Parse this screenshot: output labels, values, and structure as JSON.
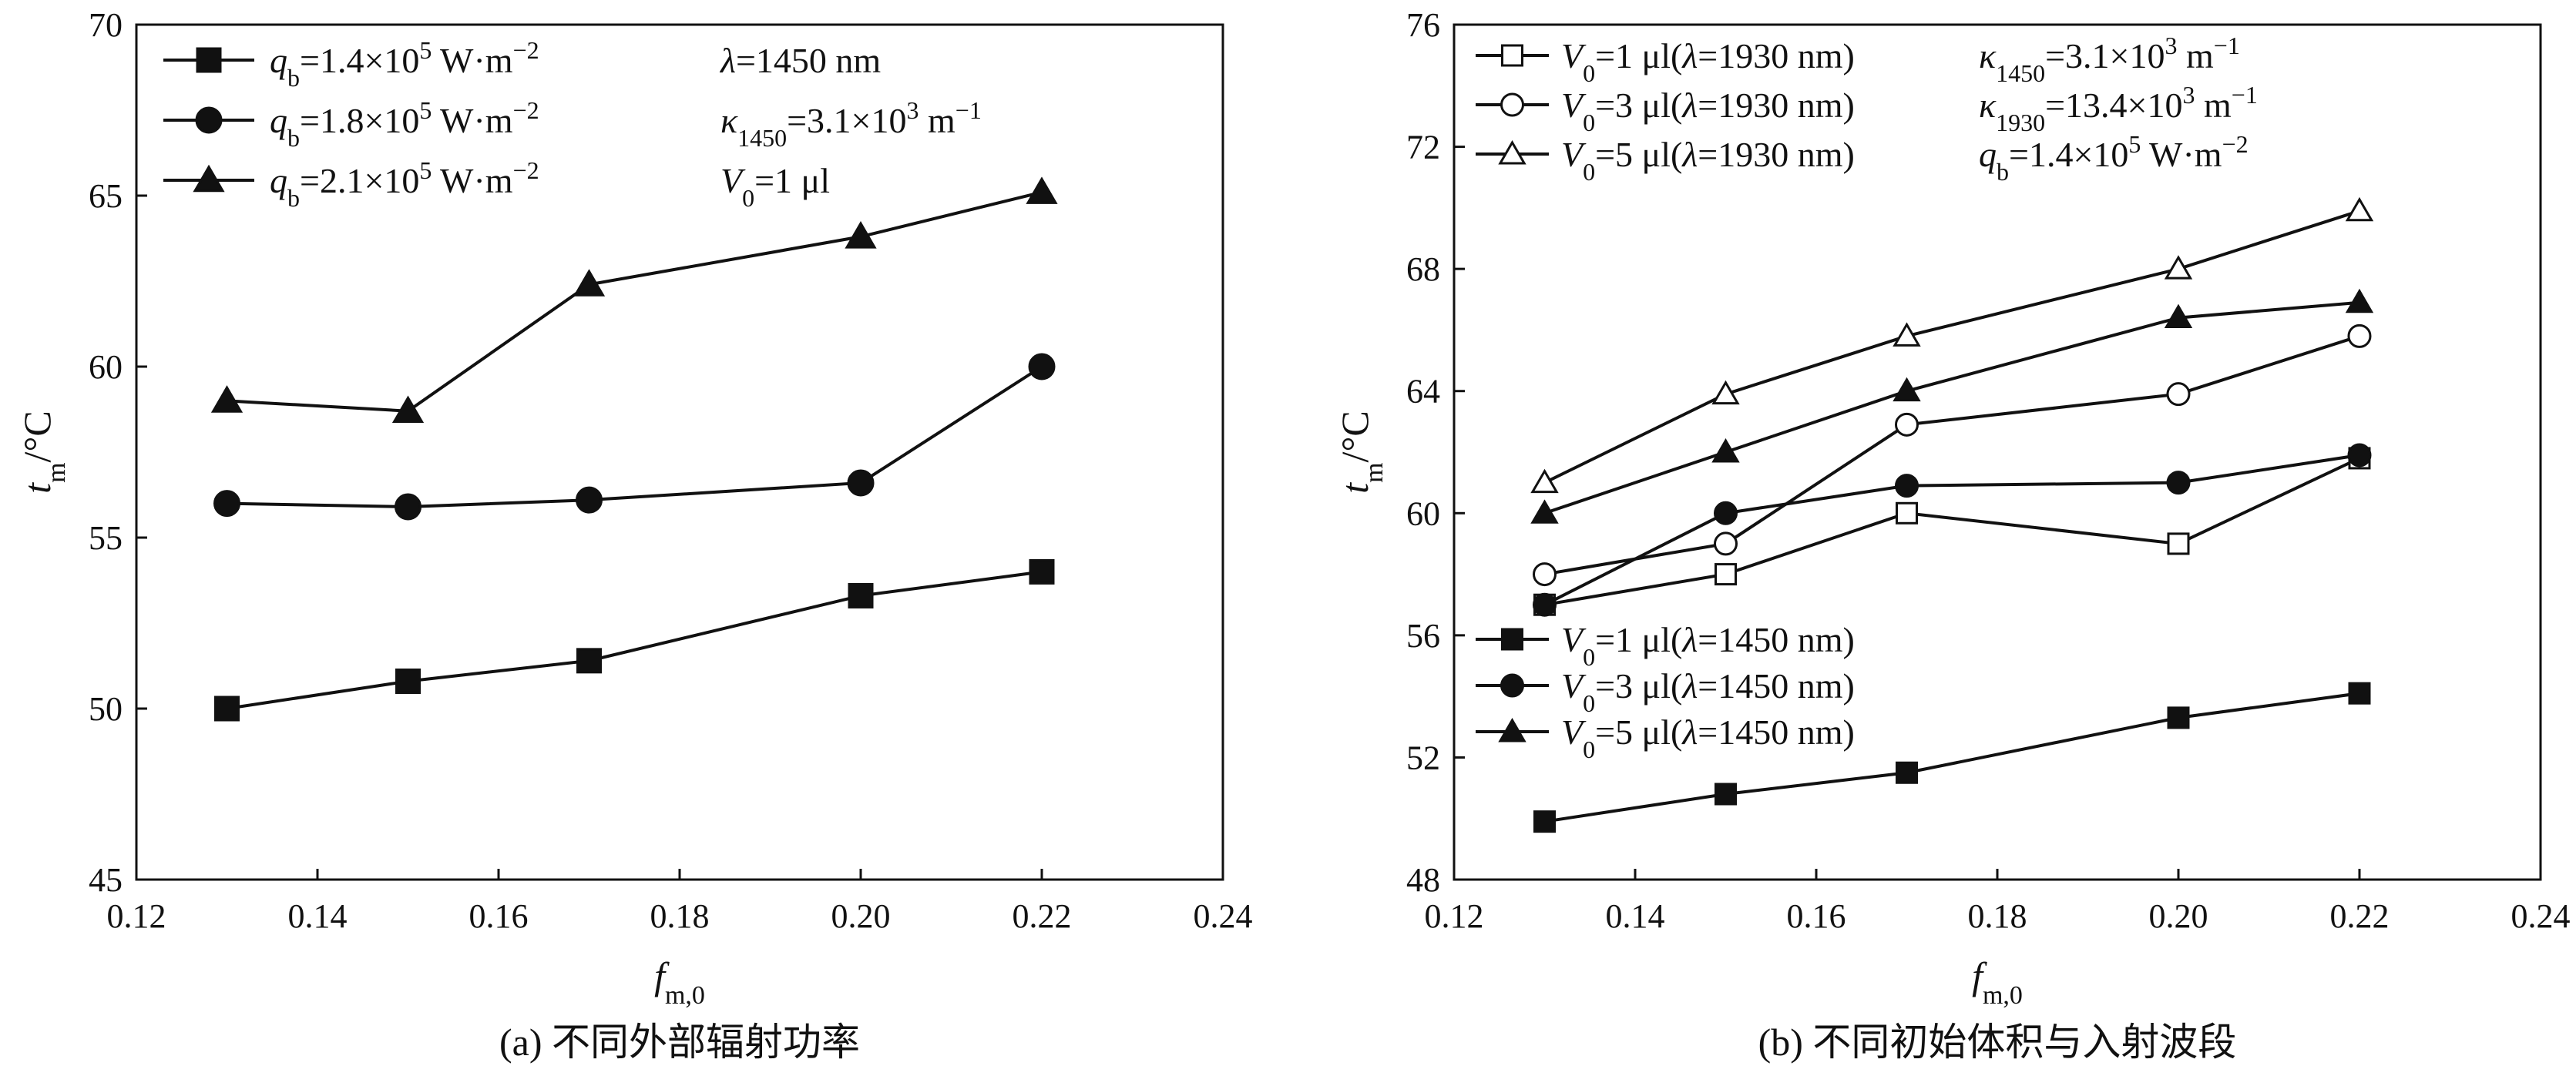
{
  "chart_data": [
    {
      "type": "line",
      "caption": "(a) 不同外部辐射功率",
      "xlabel": {
        "base": "f",
        "sub": "m,0"
      },
      "ylabel": {
        "base": "t",
        "sub": "m",
        "unit": "/°C"
      },
      "xlim": [
        0.12,
        0.24
      ],
      "ylim": [
        45,
        70
      ],
      "xticks": [
        0.12,
        0.14,
        0.16,
        0.18,
        0.2,
        0.22,
        0.24
      ],
      "xtick_labels": [
        "0.12",
        "0.14",
        "0.16",
        "0.18",
        "0.20",
        "0.22",
        "0.24"
      ],
      "yticks": [
        45,
        50,
        55,
        60,
        65,
        70
      ],
      "ytick_labels": [
        "45",
        "50",
        "55",
        "60",
        "65",
        "70"
      ],
      "legend_position": "top-left",
      "series": [
        {
          "name": "q_b=1.4×10^5 W·m^-2",
          "label_parts": [
            "q",
            "b",
            "=1.4×10",
            "5",
            " W·m",
            "−2"
          ],
          "marker": "square",
          "filled": true,
          "x": [
            0.13,
            0.15,
            0.17,
            0.2,
            0.22
          ],
          "values": [
            50.0,
            50.8,
            51.4,
            53.3,
            54.0
          ]
        },
        {
          "name": "q_b=1.8×10^5 W·m^-2",
          "label_parts": [
            "q",
            "b",
            "=1.8×10",
            "5",
            " W·m",
            "−2"
          ],
          "marker": "circle",
          "filled": true,
          "x": [
            0.13,
            0.15,
            0.17,
            0.2,
            0.22
          ],
          "values": [
            56.0,
            55.9,
            56.1,
            56.6,
            60.0
          ]
        },
        {
          "name": "q_b=2.1×10^5 W·m^-2",
          "label_parts": [
            "q",
            "b",
            "=2.1×10",
            "5",
            " W·m",
            "−2"
          ],
          "marker": "triangle",
          "filled": true,
          "x": [
            0.13,
            0.15,
            0.17,
            0.2,
            0.22
          ],
          "values": [
            59.0,
            58.7,
            62.4,
            63.8,
            65.1
          ]
        }
      ],
      "annotations": [
        {
          "parts": [
            "λ",
            "",
            "=1450 nm",
            "",
            "",
            ""
          ]
        },
        {
          "parts": [
            "κ",
            "1450",
            "=3.1×10",
            "3",
            " m",
            "−1"
          ]
        },
        {
          "parts": [
            "V",
            "0",
            "=1 μl",
            "",
            "",
            ""
          ]
        }
      ]
    },
    {
      "type": "line",
      "caption": "(b) 不同初始体积与入射波段",
      "xlabel": {
        "base": "f",
        "sub": "m,0"
      },
      "ylabel": {
        "base": "t",
        "sub": "m",
        "unit": "/°C"
      },
      "xlim": [
        0.12,
        0.24
      ],
      "ylim": [
        48,
        76
      ],
      "xticks": [
        0.12,
        0.14,
        0.16,
        0.18,
        0.2,
        0.22,
        0.24
      ],
      "xtick_labels": [
        "0.12",
        "0.14",
        "0.16",
        "0.18",
        "0.20",
        "0.22",
        "0.24"
      ],
      "yticks": [
        48,
        52,
        56,
        60,
        64,
        68,
        72,
        76
      ],
      "ytick_labels": [
        "48",
        "52",
        "56",
        "60",
        "64",
        "68",
        "72",
        "76"
      ],
      "legend_position": "top-left and center-left",
      "series": [
        {
          "name": "V0=1 μl(λ=1930 nm)",
          "label_parts": [
            "V",
            "0",
            "=1 μl(",
            "λ",
            "=1930 nm)"
          ],
          "marker": "square",
          "filled": false,
          "x": [
            0.13,
            0.15,
            0.17,
            0.2,
            0.22
          ],
          "values": [
            57.0,
            58.0,
            60.0,
            59.0,
            61.8
          ]
        },
        {
          "name": "V0=3 μl(λ=1930 nm)",
          "label_parts": [
            "V",
            "0",
            "=3 μl(",
            "λ",
            "=1930 nm)"
          ],
          "marker": "circle",
          "filled": false,
          "x": [
            0.13,
            0.15,
            0.17,
            0.2,
            0.22
          ],
          "values": [
            58.0,
            59.0,
            62.9,
            63.9,
            65.8
          ]
        },
        {
          "name": "V0=5 μl(λ=1930 nm)",
          "label_parts": [
            "V",
            "0",
            "=5 μl(",
            "λ",
            "=1930 nm)"
          ],
          "marker": "triangle",
          "filled": false,
          "x": [
            0.13,
            0.15,
            0.17,
            0.2,
            0.22
          ],
          "values": [
            61.0,
            63.9,
            65.8,
            68.0,
            69.9
          ]
        },
        {
          "name": "V0=1 μl(λ=1450 nm)",
          "label_parts": [
            "V",
            "0",
            "=1 μl(",
            "λ",
            "=1450 nm)"
          ],
          "marker": "square",
          "filled": true,
          "x": [
            0.13,
            0.15,
            0.17,
            0.2,
            0.22
          ],
          "values": [
            49.9,
            50.8,
            51.5,
            53.3,
            54.1
          ]
        },
        {
          "name": "V0=3 μl(λ=1450 nm)",
          "label_parts": [
            "V",
            "0",
            "=3 μl(",
            "λ",
            "=1450 nm)"
          ],
          "marker": "circle",
          "filled": true,
          "x": [
            0.13,
            0.15,
            0.17,
            0.2,
            0.22
          ],
          "values": [
            57.0,
            60.0,
            60.9,
            61.0,
            61.9
          ]
        },
        {
          "name": "V0=5 μl(λ=1450 nm)",
          "label_parts": [
            "V",
            "0",
            "=5 μl(",
            "λ",
            "=1450 nm)"
          ],
          "marker": "triangle",
          "filled": true,
          "x": [
            0.13,
            0.15,
            0.17,
            0.2,
            0.22
          ],
          "values": [
            60.0,
            62.0,
            64.0,
            66.4,
            66.9
          ]
        }
      ],
      "annotations": [
        {
          "parts": [
            "κ",
            "1450",
            "=3.1×10",
            "3",
            " m",
            "−1"
          ]
        },
        {
          "parts": [
            "κ",
            "1930",
            "=13.4×10",
            "3",
            " m",
            "−1"
          ]
        },
        {
          "parts": [
            "q",
            "b",
            "=1.4×10",
            "5",
            " W·m",
            "−2"
          ]
        }
      ]
    }
  ]
}
